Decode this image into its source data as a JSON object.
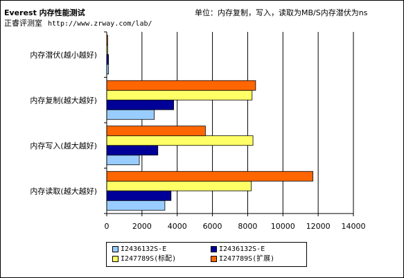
{
  "header": {
    "title": "Everest 内存性能测试",
    "unit": "单位：内存复制，写入，读取为MB/S内存潜伏为ns",
    "source_name": "正睿评测室",
    "source_url": "http://www.zrway.com/lab/"
  },
  "chart_data": {
    "type": "bar",
    "orientation": "horizontal",
    "title": "Everest 内存性能测试",
    "categories": [
      "内存潜伏(越小越好)",
      "内存复制(越大越好)",
      "内存写入(越大越好)",
      "内存读取(越大越好)"
    ],
    "series": [
      {
        "name": "I2436132S-E",
        "color": "#99ccff",
        "values": [
          104,
          2700,
          1850,
          3300
        ]
      },
      {
        "name": "I2436132S-E",
        "color": "#000099",
        "values": [
          104,
          3800,
          2900,
          3650
        ]
      },
      {
        "name": "I247789S(标配)",
        "color": "#ffff66",
        "values": [
          60,
          8250,
          8300,
          8200
        ]
      },
      {
        "name": "I247789S(扩展)",
        "color": "#ff6600",
        "values": [
          55,
          8450,
          5600,
          11700
        ]
      }
    ],
    "xlim": [
      0,
      14000
    ],
    "xticks": [
      0,
      2000,
      4000,
      6000,
      8000,
      10000,
      12000,
      14000
    ],
    "grid": true,
    "legend_position": "bottom"
  }
}
